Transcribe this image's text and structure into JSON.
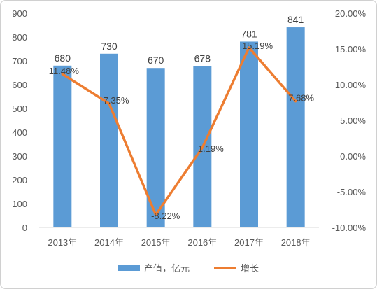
{
  "chart_data": {
    "type": "bar",
    "categories": [
      "2013年",
      "2014年",
      "2015年",
      "2016年",
      "2017年",
      "2018年"
    ],
    "series": [
      {
        "name": "产值，亿元",
        "type": "bar",
        "axis": "left",
        "values": [
          680,
          730,
          670,
          678,
          781,
          841
        ],
        "labels": [
          "680",
          "730",
          "670",
          "678",
          "781",
          "841"
        ],
        "color": "#5B9BD5"
      },
      {
        "name": "增长",
        "type": "line",
        "axis": "right",
        "values": [
          11.48,
          7.35,
          -8.22,
          1.19,
          15.19,
          7.68
        ],
        "labels": [
          "11.48%",
          "7.35%",
          "-8.22%",
          "1.19%",
          "15.19%",
          "7.68%"
        ],
        "color": "#ED7D31"
      }
    ],
    "y_left": {
      "min": 0,
      "max": 900,
      "ticks": [
        "0",
        "100",
        "200",
        "300",
        "400",
        "500",
        "600",
        "700",
        "800",
        "900"
      ],
      "tick_values": [
        0,
        100,
        200,
        300,
        400,
        500,
        600,
        700,
        800,
        900
      ]
    },
    "y_right": {
      "min": -10,
      "max": 20,
      "ticks": [
        "-10.00%",
        "-5.00%",
        "0.00%",
        "5.00%",
        "10.00%",
        "15.00%",
        "20.00%"
      ],
      "tick_values": [
        -10,
        -5,
        0,
        5,
        10,
        15,
        20
      ]
    },
    "grid": false,
    "legend_position": "bottom"
  }
}
